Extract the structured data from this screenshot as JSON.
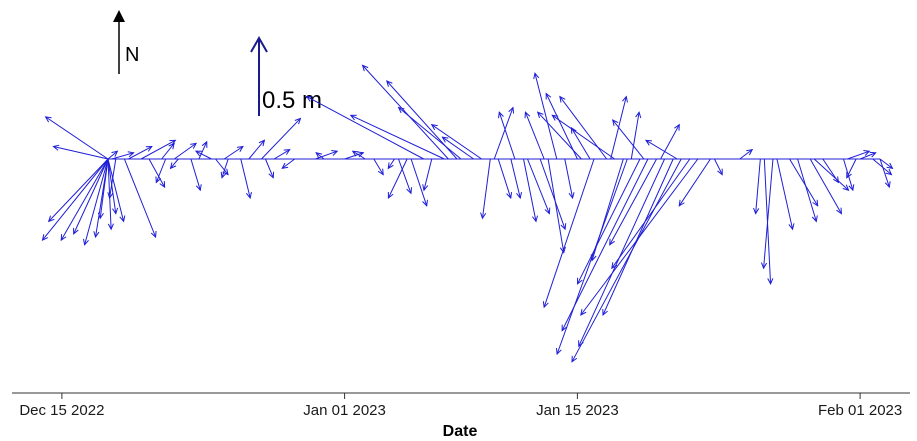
{
  "chart_data": {
    "type": "vector_stick",
    "title": "",
    "xlabel": "Date",
    "ylabel": "",
    "xlim": [
      "2022-12-12",
      "2023-02-04"
    ],
    "x_ticks": [
      "Dec 15 2022",
      "Jan 01 2023",
      "Jan 15 2023",
      "Feb 01 2023"
    ],
    "north_label": "N",
    "scale_label": "0.5 m",
    "scale_length_m": 0.5,
    "vector_color": "#1f1fd6",
    "axis_color": "#333333",
    "vectors": [
      {
        "date": "2022-12-13",
        "u": -0.4,
        "v": 0.27
      },
      {
        "date": "2022-12-13",
        "u": -0.35,
        "v": 0.08
      },
      {
        "date": "2022-12-13",
        "u": -0.42,
        "v": -0.52
      },
      {
        "date": "2022-12-14",
        "u": -0.38,
        "v": -0.4
      },
      {
        "date": "2022-12-14",
        "u": -0.3,
        "v": -0.52
      },
      {
        "date": "2022-12-14",
        "u": -0.22,
        "v": -0.48
      },
      {
        "date": "2022-12-15",
        "u": -0.15,
        "v": -0.55
      },
      {
        "date": "2022-12-15",
        "u": -0.08,
        "v": -0.5
      },
      {
        "date": "2022-12-15",
        "u": 0.02,
        "v": -0.45
      },
      {
        "date": "2022-12-16",
        "u": -0.05,
        "v": -0.38
      },
      {
        "date": "2022-12-16",
        "u": 0.05,
        "v": -0.35
      },
      {
        "date": "2022-12-17",
        "u": 0.1,
        "v": -0.4
      },
      {
        "date": "2022-12-17",
        "u": 0.06,
        "v": 0.05
      },
      {
        "date": "2022-12-18",
        "u": 0.14,
        "v": 0.04
      },
      {
        "date": "2022-12-18",
        "u": -0.04,
        "v": -0.25
      },
      {
        "date": "2022-12-19",
        "u": 0.2,
        "v": -0.5
      },
      {
        "date": "2022-12-19",
        "u": 0.15,
        "v": 0.08
      },
      {
        "date": "2022-12-20",
        "u": 0.1,
        "v": -0.18
      },
      {
        "date": "2022-12-20",
        "u": 0.22,
        "v": 0.12
      },
      {
        "date": "2022-12-21",
        "u": 0.08,
        "v": 0.1
      },
      {
        "date": "2022-12-21",
        "u": -0.06,
        "v": -0.15
      },
      {
        "date": "2022-12-22",
        "u": 0.14,
        "v": 0.1
      },
      {
        "date": "2022-12-22",
        "u": -0.05,
        "v": -0.06
      },
      {
        "date": "2022-12-23",
        "u": 0.05,
        "v": 0.11
      },
      {
        "date": "2022-12-23",
        "u": 0.06,
        "v": -0.2
      },
      {
        "date": "2022-12-24",
        "u": -0.1,
        "v": 0.05
      },
      {
        "date": "2022-12-24",
        "u": 0.08,
        "v": -0.1
      },
      {
        "date": "2022-12-25",
        "u": 0.12,
        "v": 0.08
      },
      {
        "date": "2022-12-25",
        "u": -0.04,
        "v": -0.12
      },
      {
        "date": "2022-12-26",
        "u": 0.1,
        "v": 0.12
      },
      {
        "date": "2022-12-26",
        "u": 0.06,
        "v": -0.25
      },
      {
        "date": "2022-12-27",
        "u": 0.25,
        "v": 0.26
      },
      {
        "date": "2022-12-27",
        "u": 0.05,
        "v": -0.12
      },
      {
        "date": "2022-12-28",
        "u": 0.1,
        "v": 0.06
      },
      {
        "date": "2022-12-29",
        "u": -0.08,
        "v": -0.06
      },
      {
        "date": "2022-12-30",
        "u": 0.14,
        "v": 0.05
      },
      {
        "date": "2022-12-31",
        "u": -0.05,
        "v": 0.04
      },
      {
        "date": "2023-01-01",
        "u": 0.12,
        "v": 0.04
      },
      {
        "date": "2023-01-02",
        "u": -0.08,
        "v": 0.05
      },
      {
        "date": "2023-01-03",
        "u": 0.06,
        "v": -0.1
      },
      {
        "date": "2023-01-04",
        "u": -0.04,
        "v": -0.06
      },
      {
        "date": "2023-01-04",
        "u": 0.08,
        "v": -0.22
      },
      {
        "date": "2023-01-05",
        "u": -0.12,
        "v": -0.25
      },
      {
        "date": "2023-01-05",
        "u": 0.1,
        "v": -0.3
      },
      {
        "date": "2023-01-06",
        "u": -0.05,
        "v": -0.2
      },
      {
        "date": "2023-01-06",
        "u": -0.75,
        "v": 0.4
      },
      {
        "date": "2023-01-07",
        "u": -0.6,
        "v": 0.28
      },
      {
        "date": "2023-01-07",
        "u": -0.55,
        "v": 0.6
      },
      {
        "date": "2023-01-08",
        "u": -0.45,
        "v": 0.5
      },
      {
        "date": "2023-01-08",
        "u": -0.4,
        "v": 0.33
      },
      {
        "date": "2023-01-09",
        "u": -0.32,
        "v": 0.22
      },
      {
        "date": "2023-01-09",
        "u": -0.2,
        "v": 0.14
      },
      {
        "date": "2023-01-10",
        "u": 0.12,
        "v": 0.33
      },
      {
        "date": "2023-01-10",
        "u": 0.08,
        "v": -0.25
      },
      {
        "date": "2023-01-10",
        "u": -0.05,
        "v": -0.38
      },
      {
        "date": "2023-01-11",
        "u": 0.06,
        "v": -0.25
      },
      {
        "date": "2023-01-11",
        "u": -0.1,
        "v": 0.3
      },
      {
        "date": "2023-01-12",
        "u": 0.08,
        "v": -0.4
      },
      {
        "date": "2023-01-12",
        "u": 0.14,
        "v": -0.35
      },
      {
        "date": "2023-01-13",
        "u": 0.1,
        "v": -0.6
      },
      {
        "date": "2023-01-13",
        "u": 0.16,
        "v": -0.45
      },
      {
        "date": "2023-01-13",
        "u": -0.12,
        "v": 0.3
      },
      {
        "date": "2023-01-14",
        "u": 0.05,
        "v": -0.25
      },
      {
        "date": "2023-01-14",
        "u": -0.14,
        "v": 0.55
      },
      {
        "date": "2023-01-15",
        "u": -0.2,
        "v": 0.42
      },
      {
        "date": "2023-01-15",
        "u": -0.28,
        "v": 0.3
      },
      {
        "date": "2023-01-16",
        "u": -0.12,
        "v": 0.2
      },
      {
        "date": "2023-01-16",
        "u": -0.32,
        "v": -0.95
      },
      {
        "date": "2023-01-17",
        "u": -0.4,
        "v": 0.28
      },
      {
        "date": "2023-01-17",
        "u": -0.3,
        "v": 0.4
      },
      {
        "date": "2023-01-17",
        "u": 0.1,
        "v": 0.4
      },
      {
        "date": "2023-01-18",
        "u": 0.05,
        "v": 0.3
      },
      {
        "date": "2023-01-18",
        "u": -0.2,
        "v": -0.65
      },
      {
        "date": "2023-01-18",
        "u": -0.45,
        "v": -1.25
      },
      {
        "date": "2023-01-19",
        "u": -0.55,
        "v": -1.1
      },
      {
        "date": "2023-01-19",
        "u": -0.4,
        "v": -0.8
      },
      {
        "date": "2023-01-19",
        "u": -0.2,
        "v": 0.25
      },
      {
        "date": "2023-01-20",
        "u": -0.55,
        "v": -1.2
      },
      {
        "date": "2023-01-20",
        "u": -0.3,
        "v": -0.55
      },
      {
        "date": "2023-01-20",
        "u": 0.12,
        "v": 0.22
      },
      {
        "date": "2023-01-21",
        "u": -0.7,
        "v": -1.3
      },
      {
        "date": "2023-01-21",
        "u": -0.45,
        "v": -1.0
      },
      {
        "date": "2023-01-21",
        "u": -0.2,
        "v": 0.12
      },
      {
        "date": "2023-01-22",
        "u": -0.75,
        "v": -1.0
      },
      {
        "date": "2023-01-22",
        "u": -0.5,
        "v": -0.7
      },
      {
        "date": "2023-01-23",
        "u": -0.2,
        "v": -0.3
      },
      {
        "date": "2023-01-23",
        "u": 0.05,
        "v": -0.1
      },
      {
        "date": "2023-01-25",
        "u": 0.08,
        "v": 0.06
      },
      {
        "date": "2023-01-26",
        "u": -0.03,
        "v": -0.35
      },
      {
        "date": "2023-01-26",
        "u": 0.04,
        "v": -0.8
      },
      {
        "date": "2023-01-27",
        "u": -0.06,
        "v": -0.7
      },
      {
        "date": "2023-01-27",
        "u": 0.1,
        "v": -0.45
      },
      {
        "date": "2023-01-28",
        "u": 0.12,
        "v": -0.4
      },
      {
        "date": "2023-01-28",
        "u": 0.18,
        "v": -0.3
      },
      {
        "date": "2023-01-29",
        "u": 0.2,
        "v": -0.35
      },
      {
        "date": "2023-01-29",
        "u": 0.22,
        "v": -0.2
      },
      {
        "date": "2023-01-30",
        "u": 0.1,
        "v": -0.15
      },
      {
        "date": "2023-01-31",
        "u": 0.06,
        "v": -0.2
      },
      {
        "date": "2023-01-31",
        "u": 0.14,
        "v": 0.05
      },
      {
        "date": "2023-02-01",
        "u": -0.06,
        "v": -0.12
      },
      {
        "date": "2023-02-01",
        "u": 0.1,
        "v": 0.04
      },
      {
        "date": "2023-02-02",
        "u": 0.06,
        "v": -0.18
      },
      {
        "date": "2023-02-02",
        "u": 0.12,
        "v": -0.1
      },
      {
        "date": "2023-02-03",
        "u": 0.08,
        "v": -0.06
      }
    ]
  }
}
